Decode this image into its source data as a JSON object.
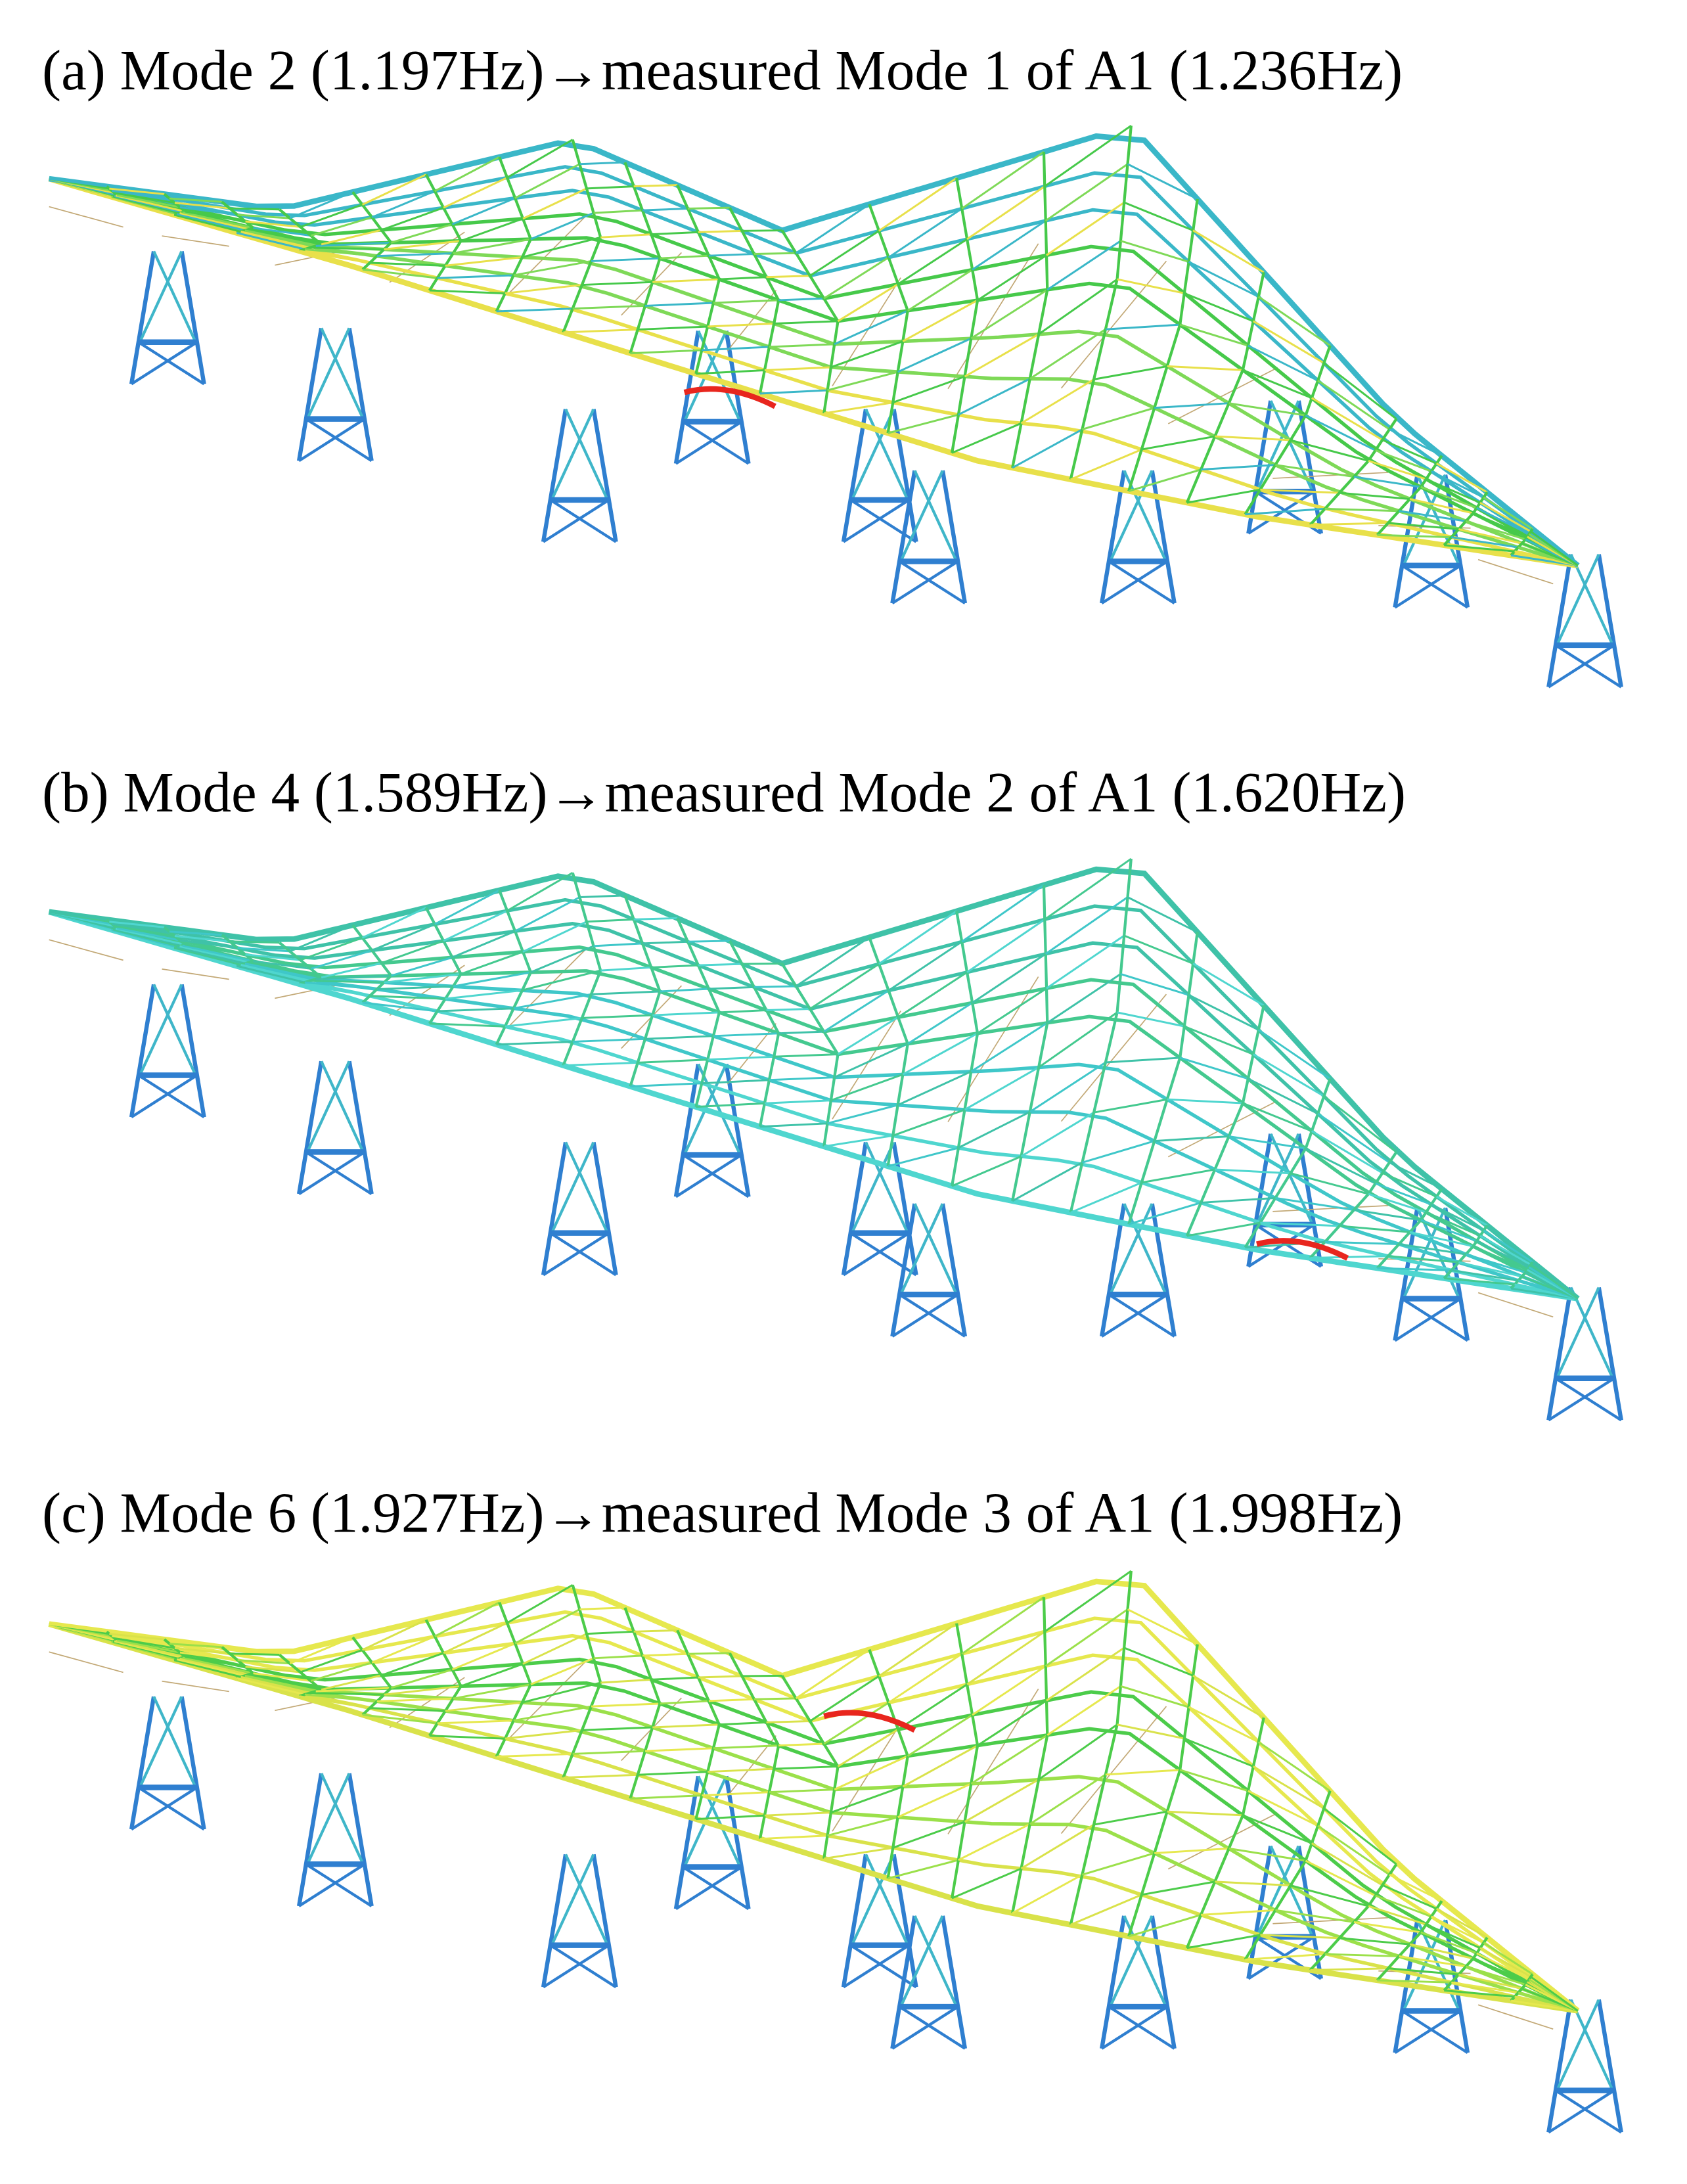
{
  "panels": [
    {
      "title": "(a) Mode 2 (1.197Hz)→measured Mode 1 of A1 (1.236Hz)"
    },
    {
      "title": "(b) Mode 4 (1.589Hz)→measured Mode 2 of A1 (1.620Hz)"
    },
    {
      "title": "(c) Mode 6 (1.927Hz)→measured Mode 3 of A1 (1.998Hz)"
    }
  ]
}
